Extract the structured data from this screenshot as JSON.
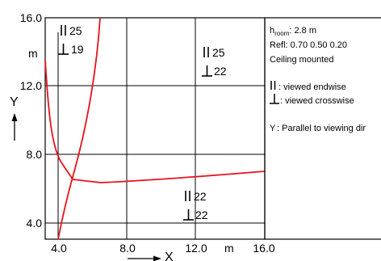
{
  "diagram": {
    "x_axis": {
      "letter": "X",
      "unit": "m",
      "ticks": [
        "4.0",
        "8.0",
        "12.0",
        "16.0"
      ],
      "arrow_icon": "arrow-right-icon"
    },
    "y_axis": {
      "letter": "Y",
      "unit": "m",
      "ticks": [
        "16.0",
        "12.0",
        "8.0",
        "4.0"
      ],
      "arrow_icon": "arrow-up-icon"
    },
    "glare_values": [
      {
        "endwise": "25",
        "crosswise": "19"
      },
      {
        "endwise": "25",
        "crosswise": "22"
      },
      {
        "endwise": "22",
        "crosswise": "22"
      }
    ],
    "curve_color": "#e8121a"
  },
  "legend": {
    "room_height_label": "h",
    "room_height_sub": "room",
    "room_height_value": ": 2.8 m",
    "reflectances": "Refl: 0.70 0.50 0.20",
    "mounting": "Ceiling mounted",
    "endwise_label": ": viewed endwise",
    "crosswise_label": ": viewed crosswise",
    "y_label": "Y",
    "y_desc": ":  Parallel to viewing dir"
  }
}
